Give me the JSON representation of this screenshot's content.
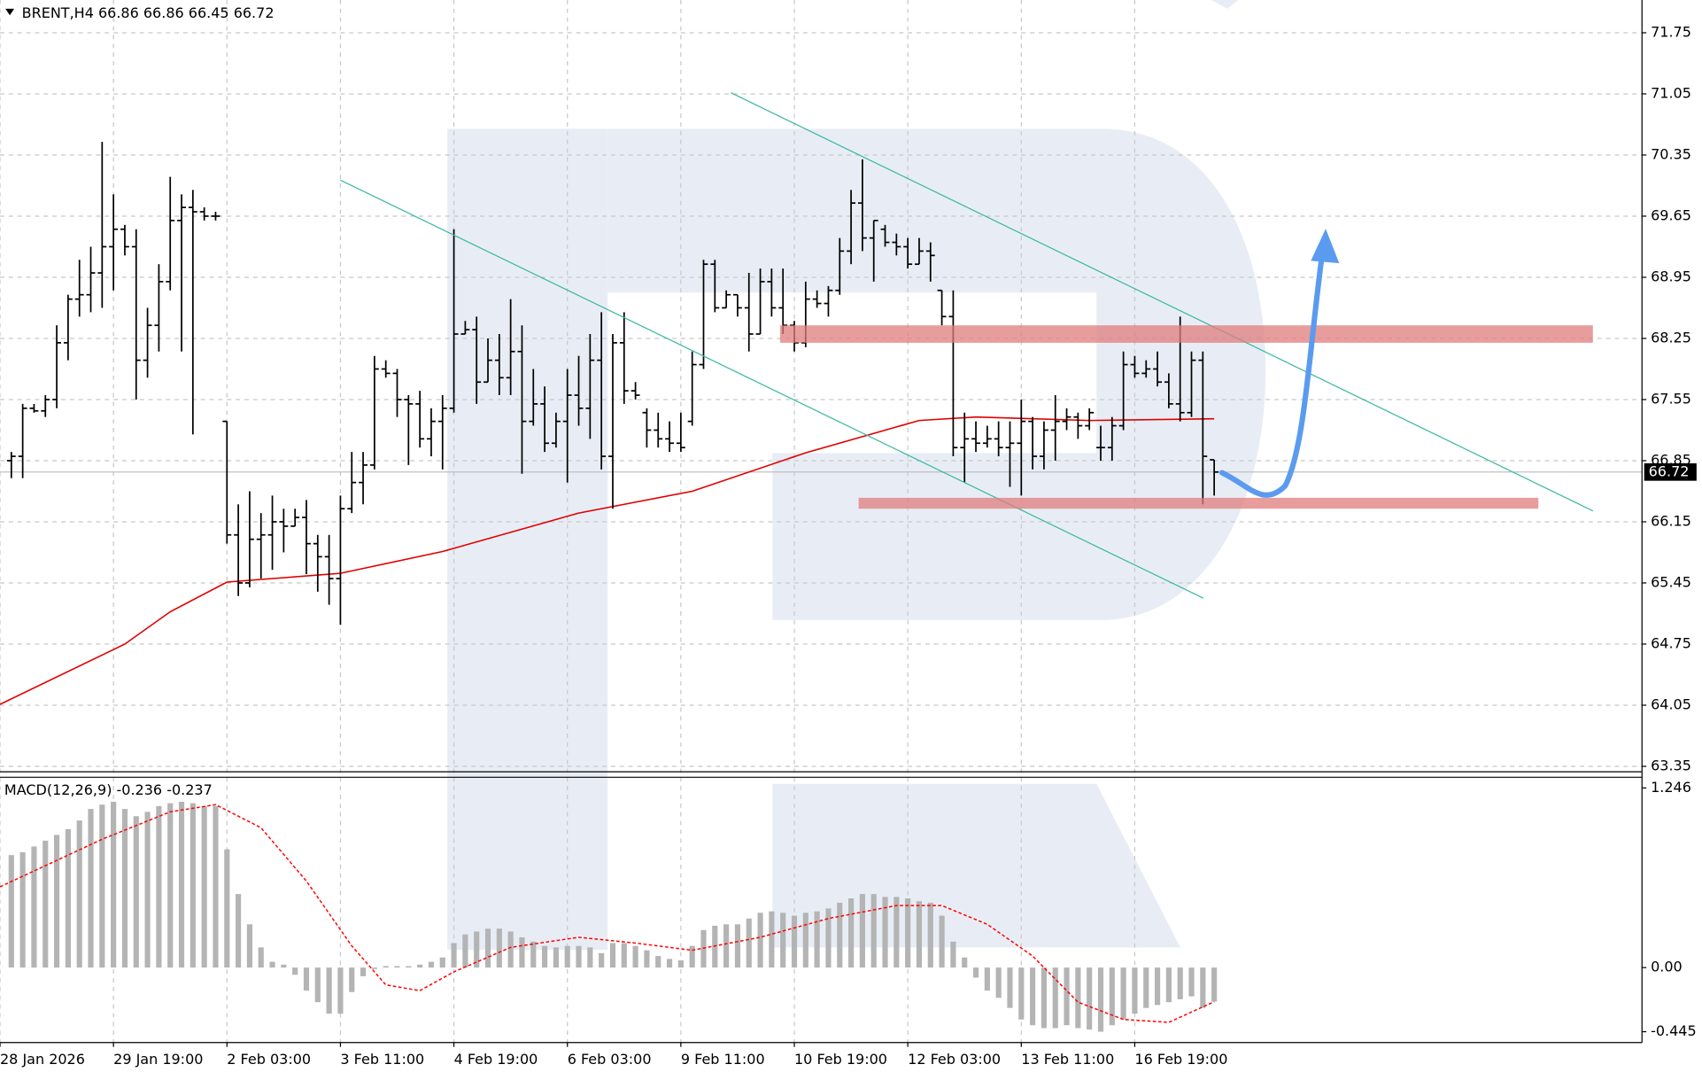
{
  "chart_data": {
    "type": "ohlc",
    "title": "BRENT,H4",
    "last_ohlc": [
      66.86,
      66.86,
      66.45,
      66.72
    ],
    "last_price": 66.72,
    "xlim": [
      -1,
      143.7
    ],
    "xticks": [
      {
        "value": -1,
        "label": "28 Jan 2026"
      },
      {
        "value": 9,
        "label": "29 Jan 19:00"
      },
      {
        "value": 19,
        "label": "2 Feb 03:00"
      },
      {
        "value": 29,
        "label": "3 Feb 11:00"
      },
      {
        "value": 39,
        "label": "4 Feb 19:00"
      },
      {
        "value": 49,
        "label": "6 Feb 03:00"
      },
      {
        "value": 59,
        "label": "9 Feb 11:00"
      },
      {
        "value": 69,
        "label": "10 Feb 19:00"
      },
      {
        "value": 79,
        "label": "12 Feb 03:00"
      },
      {
        "value": 89,
        "label": "13 Feb 11:00"
      },
      {
        "value": 99,
        "label": "16 Feb 19:00"
      }
    ],
    "ylim": [
      63.2875,
      72.125
    ],
    "yticks": [
      71.75,
      71.05,
      70.35,
      69.65,
      68.95,
      68.25,
      67.55,
      66.85,
      66.15,
      65.45,
      64.75,
      64.05,
      63.35
    ],
    "grid": true,
    "color": "#000000",
    "bars": [
      [
        66.85,
        66.95,
        66.65,
        66.9
      ],
      [
        66.9,
        67.5,
        66.65,
        67.45
      ],
      [
        67.45,
        67.5,
        67.4,
        67.42
      ],
      [
        67.42,
        67.6,
        67.35,
        67.55
      ],
      [
        67.55,
        68.4,
        67.45,
        68.2
      ],
      [
        68.2,
        68.75,
        68.0,
        68.7
      ],
      [
        68.7,
        69.15,
        68.5,
        68.75
      ],
      [
        68.75,
        69.3,
        68.55,
        69.0
      ],
      [
        69.0,
        70.5,
        68.6,
        69.3
      ],
      [
        69.3,
        69.9,
        68.8,
        69.5
      ],
      [
        69.5,
        69.55,
        69.2,
        69.3
      ],
      [
        69.3,
        69.5,
        67.55,
        68.0
      ],
      [
        68.0,
        68.6,
        67.8,
        68.4
      ],
      [
        68.4,
        69.1,
        68.1,
        68.9
      ],
      [
        68.9,
        70.1,
        68.8,
        69.6
      ],
      [
        69.6,
        69.9,
        68.1,
        69.75
      ],
      [
        69.75,
        69.95,
        67.15,
        69.7
      ],
      [
        69.7,
        69.75,
        69.6,
        69.65
      ],
      [
        69.65,
        69.7,
        69.6,
        69.65
      ],
      [
        67.3,
        67.3,
        65.9,
        66.0
      ],
      [
        66.0,
        66.35,
        65.3,
        65.45
      ],
      [
        65.45,
        66.5,
        65.4,
        65.95
      ],
      [
        65.95,
        66.25,
        65.5,
        66.0
      ],
      [
        66.0,
        66.45,
        65.6,
        66.15
      ],
      [
        66.15,
        66.3,
        65.8,
        66.1
      ],
      [
        66.1,
        66.3,
        66.1,
        66.2
      ],
      [
        66.2,
        66.4,
        65.55,
        65.9
      ],
      [
        65.9,
        66.0,
        65.35,
        65.75
      ],
      [
        65.75,
        66.0,
        65.2,
        65.5
      ],
      [
        65.5,
        66.45,
        64.97,
        66.3
      ],
      [
        66.3,
        66.95,
        66.25,
        66.6
      ],
      [
        66.6,
        66.95,
        66.35,
        66.8
      ],
      [
        66.8,
        68.05,
        66.75,
        67.9
      ],
      [
        67.9,
        68.0,
        67.8,
        67.85
      ],
      [
        67.85,
        67.9,
        67.35,
        67.55
      ],
      [
        67.55,
        67.6,
        66.8,
        67.5
      ],
      [
        67.5,
        67.65,
        67.0,
        67.1
      ],
      [
        67.1,
        67.45,
        66.9,
        67.3
      ],
      [
        67.3,
        67.6,
        66.75,
        67.45
      ],
      [
        67.45,
        69.5,
        67.4,
        68.3
      ],
      [
        68.3,
        68.45,
        68.3,
        68.35
      ],
      [
        68.35,
        68.5,
        67.5,
        67.75
      ],
      [
        67.75,
        68.25,
        67.75,
        68.0
      ],
      [
        68.0,
        68.3,
        67.6,
        67.8
      ],
      [
        67.8,
        68.7,
        67.6,
        68.1
      ],
      [
        68.1,
        68.4,
        66.7,
        67.3
      ],
      [
        67.3,
        67.9,
        67.25,
        67.5
      ],
      [
        67.5,
        67.7,
        66.95,
        67.05
      ],
      [
        67.05,
        67.4,
        67.0,
        67.3
      ],
      [
        67.3,
        67.9,
        66.6,
        67.6
      ],
      [
        67.6,
        68.05,
        67.25,
        67.45
      ],
      [
        67.45,
        68.3,
        67.1,
        68.0
      ],
      [
        68.0,
        68.55,
        66.75,
        66.9
      ],
      [
        66.9,
        68.3,
        66.3,
        68.2
      ],
      [
        68.2,
        68.55,
        67.5,
        67.65
      ],
      [
        67.65,
        67.75,
        67.55,
        67.6
      ],
      [
        67.4,
        67.45,
        67.0,
        67.2
      ],
      [
        67.2,
        67.4,
        67.0,
        67.1
      ],
      [
        67.1,
        67.3,
        66.95,
        67.05
      ],
      [
        67.05,
        67.4,
        66.95,
        67.0
      ],
      [
        67.3,
        68.1,
        67.25,
        67.95
      ],
      [
        67.95,
        69.15,
        67.9,
        69.1
      ],
      [
        69.1,
        69.15,
        68.55,
        68.6
      ],
      [
        68.6,
        68.8,
        68.6,
        68.75
      ],
      [
        68.75,
        68.75,
        68.5,
        68.6
      ],
      [
        68.6,
        69.0,
        68.1,
        68.3
      ],
      [
        68.3,
        69.05,
        68.3,
        68.9
      ],
      [
        68.9,
        69.05,
        68.5,
        68.6
      ],
      [
        68.6,
        69.05,
        68.3,
        68.4
      ],
      [
        68.4,
        68.45,
        68.1,
        68.2
      ],
      [
        68.2,
        68.9,
        68.15,
        68.7
      ],
      [
        68.7,
        68.8,
        68.6,
        68.65
      ],
      [
        68.65,
        68.85,
        68.5,
        68.8
      ],
      [
        68.8,
        69.4,
        68.75,
        69.25
      ],
      [
        69.25,
        69.95,
        69.1,
        69.8
      ],
      [
        69.8,
        70.3,
        69.25,
        69.4
      ],
      [
        69.4,
        69.6,
        68.9,
        69.6
      ],
      [
        69.5,
        69.55,
        69.3,
        69.35
      ],
      [
        69.35,
        69.45,
        69.2,
        69.3
      ],
      [
        69.3,
        69.4,
        69.05,
        69.1
      ],
      [
        69.1,
        69.4,
        69.1,
        69.25
      ],
      [
        69.25,
        69.35,
        68.9,
        69.2
      ],
      [
        68.8,
        68.8,
        68.4,
        68.5
      ],
      [
        68.5,
        68.8,
        66.9,
        67.0
      ],
      [
        67.0,
        67.4,
        66.6,
        67.1
      ],
      [
        67.1,
        67.3,
        66.95,
        67.05
      ],
      [
        67.05,
        67.25,
        67.0,
        67.1
      ],
      [
        67.1,
        67.3,
        66.9,
        67.0
      ],
      [
        67.0,
        67.3,
        66.55,
        67.05
      ],
      [
        67.05,
        67.55,
        66.45,
        67.3
      ],
      [
        67.3,
        67.35,
        66.75,
        66.9
      ],
      [
        66.9,
        67.3,
        66.75,
        67.2
      ],
      [
        67.2,
        67.6,
        66.85,
        67.3
      ],
      [
        67.3,
        67.45,
        67.2,
        67.35
      ],
      [
        67.35,
        67.4,
        67.1,
        67.25
      ],
      [
        67.25,
        67.45,
        67.2,
        67.4
      ],
      [
        67.0,
        67.25,
        66.85,
        67.0
      ],
      [
        67.0,
        67.35,
        66.85,
        67.25
      ],
      [
        67.25,
        68.1,
        67.2,
        67.95
      ],
      [
        67.95,
        68.05,
        67.8,
        67.85
      ],
      [
        67.85,
        68.0,
        67.8,
        67.9
      ],
      [
        67.9,
        68.1,
        67.7,
        67.75
      ],
      [
        67.75,
        67.85,
        67.45,
        67.5
      ],
      [
        67.5,
        68.5,
        67.3,
        67.4
      ],
      [
        67.4,
        68.1,
        67.35,
        68.0
      ],
      [
        68.0,
        68.1,
        66.35,
        66.9
      ],
      [
        66.86,
        66.86,
        66.45,
        66.72
      ]
    ],
    "ma": {
      "color": "#e00000",
      "x": [
        -1,
        10,
        14,
        19,
        29,
        38,
        50,
        60,
        70,
        80,
        85,
        95,
        106
      ],
      "values": [
        64.06,
        64.75,
        65.12,
        65.46,
        65.56,
        65.81,
        66.25,
        66.5,
        66.94,
        67.31,
        67.35,
        67.31,
        67.33
      ]
    },
    "macd_title": "MACD(12,26,9)",
    "macd_last": [
      -0.236,
      -0.237
    ],
    "y2lim": [
      -0.52,
      1.32
    ],
    "y2ticks": [
      1.246,
      {
        "value": 0,
        "label": "0.00"
      },
      -0.445
    ],
    "macd": {
      "color": "#b4b4b4",
      "values": [
        0.78,
        0.8,
        0.84,
        0.88,
        0.92,
        0.96,
        1.02,
        1.1,
        1.13,
        1.15,
        1.1,
        1.05,
        1.08,
        1.12,
        1.14,
        1.15,
        1.14,
        1.12,
        1.12,
        0.82,
        0.51,
        0.3,
        0.14,
        0.04,
        0.02,
        -0.05,
        -0.16,
        -0.24,
        -0.32,
        -0.32,
        -0.17,
        -0.06,
        -0.01,
        0.01,
        0.01,
        0.01,
        0.02,
        0.04,
        0.07,
        0.17,
        0.23,
        0.25,
        0.27,
        0.27,
        0.25,
        0.21,
        0.18,
        0.15,
        0.14,
        0.15,
        0.15,
        0.14,
        0.1,
        0.17,
        0.17,
        0.15,
        0.12,
        0.08,
        0.06,
        0.05,
        0.15,
        0.26,
        0.29,
        0.3,
        0.3,
        0.34,
        0.38,
        0.39,
        0.38,
        0.36,
        0.38,
        0.39,
        0.41,
        0.45,
        0.48,
        0.51,
        0.51,
        0.49,
        0.49,
        0.48,
        0.46,
        0.45,
        0.36,
        0.18,
        0.07,
        -0.07,
        -0.16,
        -0.21,
        -0.28,
        -0.36,
        -0.4,
        -0.42,
        -0.42,
        -0.4,
        -0.42,
        -0.43,
        -0.445,
        -0.4,
        -0.36,
        -0.32,
        -0.28,
        -0.26,
        -0.24,
        -0.22,
        -0.2,
        -0.28,
        -0.236
      ]
    },
    "signal": {
      "color": "#ff0000",
      "x": [
        -1,
        8,
        14,
        18,
        22,
        26,
        30,
        33,
        36,
        39,
        44,
        50,
        55,
        60,
        66,
        72,
        78,
        82,
        86,
        90,
        94,
        98,
        102,
        106
      ],
      "values": [
        0.56,
        0.89,
        1.08,
        1.13,
        0.97,
        0.6,
        0.15,
        -0.12,
        -0.16,
        -0.03,
        0.14,
        0.21,
        0.17,
        0.12,
        0.21,
        0.34,
        0.43,
        0.43,
        0.3,
        0.08,
        -0.24,
        -0.36,
        -0.38,
        -0.237
      ]
    }
  }
}
